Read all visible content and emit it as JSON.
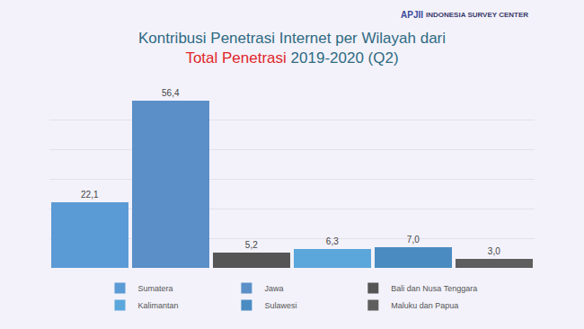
{
  "chart_data": {
    "type": "bar",
    "title": [
      "Kontribusi Penetrasi Internet per Wilayah dari",
      "Total Penetrasi 2019-2020 (Q2)"
    ],
    "categories": [
      "Sumatera",
      "Jawa",
      "Bali dan Nusa Tenggara",
      "Kalimantan",
      "Sulawesi",
      "Maluku dan Papua"
    ],
    "values": [
      22.1,
      56.4,
      5.2,
      6.3,
      7.0,
      3.0
    ],
    "value_labels": [
      "22,1",
      "56,4",
      "5,2",
      "6,3",
      "7,0",
      "3,0"
    ],
    "colors": [
      "#5b9bd5",
      "#5a8fc8",
      "#555555",
      "#5ba7dc",
      "#4a8cc2",
      "#5e5e5e"
    ],
    "ylim": [
      0,
      60
    ],
    "yticks": [
      0,
      10,
      20,
      30,
      40,
      50,
      60
    ],
    "grid": true,
    "legend": "bottom",
    "data_labels": true,
    "tick_labels": false
  },
  "logos": [
    "APJII",
    "INDONESIA SURVEY CENTER"
  ]
}
